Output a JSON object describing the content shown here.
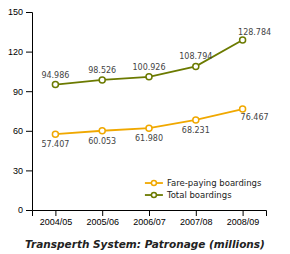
{
  "chart_data": {
    "type": "line",
    "title": "Transperth System: Patronage (millions)",
    "categories": [
      "2004/05",
      "2005/06",
      "2006/07",
      "2007/08",
      "2008/09"
    ],
    "series": [
      {
        "name": "Fare-paying boardings",
        "color": "#f0a800",
        "values": [
          57.407,
          60.053,
          61.98,
          68.231,
          76.467
        ],
        "value_labels": [
          "57.407",
          "60.053",
          "61.980",
          "68.231",
          "76.467"
        ]
      },
      {
        "name": "Total boardings",
        "color": "#6b7a00",
        "values": [
          94.986,
          98.526,
          100.926,
          108.794,
          128.784
        ],
        "value_labels": [
          "94.986",
          "98.526",
          "100.926",
          "108.794",
          "128.784"
        ]
      }
    ],
    "ylim": [
      0,
      150
    ],
    "yticks": [
      0,
      30,
      60,
      90,
      120,
      150
    ],
    "grid": false,
    "legend": "lower right",
    "data_labels": true,
    "marker": "circle"
  }
}
